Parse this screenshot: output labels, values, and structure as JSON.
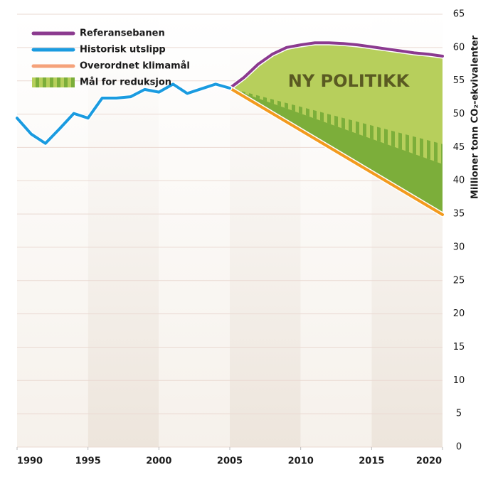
{
  "chart_data": {
    "type": "line",
    "annotation": "NY POLITIKK",
    "y_label": "Millioner tonn CO₂-ekvivalenter",
    "xlim": [
      1990,
      2020
    ],
    "xticks": [
      1990,
      1995,
      2000,
      2005,
      2010,
      2015,
      2020
    ],
    "ylim": [
      0,
      65
    ],
    "yticks": [
      0,
      5,
      10,
      15,
      20,
      25,
      30,
      35,
      40,
      45,
      50,
      55,
      60,
      65
    ],
    "grid": true,
    "series": [
      {
        "name": "Referansebanen",
        "color": "#8b3a8f",
        "x": [
          2005,
          2006,
          2007,
          2008,
          2009,
          2010,
          2011,
          2012,
          2013,
          2014,
          2015,
          2016,
          2017,
          2018,
          2019,
          2020
        ],
        "values": [
          53.9,
          55.5,
          57.5,
          59,
          60,
          60.4,
          60.7,
          60.7,
          60.6,
          60.4,
          60.1,
          59.8,
          59.5,
          59.2,
          59,
          58.7
        ]
      },
      {
        "name": "Historisk utslipp",
        "color": "#1a9be0",
        "x": [
          1990,
          1991,
          1992,
          1993,
          1994,
          1995,
          1996,
          1997,
          1998,
          1999,
          2000,
          2001,
          2002,
          2003,
          2004,
          2005
        ],
        "values": [
          49.4,
          47,
          45.6,
          47.8,
          50.1,
          49.4,
          52.4,
          52.4,
          52.6,
          53.7,
          53.3,
          54.5,
          53.1,
          53.8,
          54.5,
          53.9
        ]
      },
      {
        "name": "Overordnet klimamål",
        "color": "#f39a1e",
        "x": [
          2005,
          2020
        ],
        "values": [
          53.9,
          34.9
        ]
      },
      {
        "name": "Mål for reduksjon",
        "color": "#7cae3a",
        "x": [
          2005,
          2020
        ],
        "values": [
          53.9,
          45.5
        ],
        "values_low": [
          53.9,
          42.5
        ]
      }
    ]
  }
}
